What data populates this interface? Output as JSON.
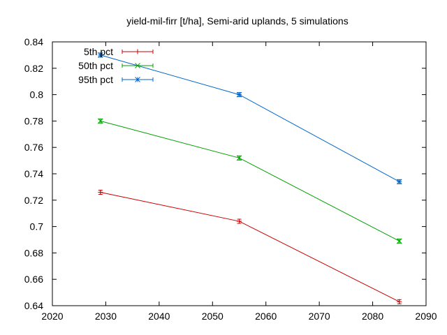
{
  "chart_data": {
    "type": "line",
    "title": "yield-mil-firr [t/ha], Semi-arid uplands, 5 simulations",
    "xlabel": "",
    "ylabel": "",
    "xlim": [
      2020,
      2090
    ],
    "ylim": [
      0.64,
      0.84
    ],
    "xticks": [
      2020,
      2030,
      2040,
      2050,
      2060,
      2070,
      2080,
      2090
    ],
    "yticks": [
      0.64,
      0.66,
      0.68,
      0.7,
      0.72,
      0.74,
      0.76,
      0.78,
      0.8,
      0.82,
      0.84
    ],
    "x": [
      2029,
      2055,
      2085
    ],
    "grid": false,
    "legend_position": "top-left",
    "series": [
      {
        "name": "5th pct",
        "values": [
          0.726,
          0.704,
          0.643
        ],
        "color": "#cc0000",
        "marker": "plus"
      },
      {
        "name": "50th pct",
        "values": [
          0.78,
          0.752,
          0.689
        ],
        "color": "#00a000",
        "marker": "x"
      },
      {
        "name": "95th pct",
        "values": [
          0.83,
          0.8,
          0.734
        ],
        "color": "#0066cc",
        "marker": "star"
      }
    ]
  }
}
